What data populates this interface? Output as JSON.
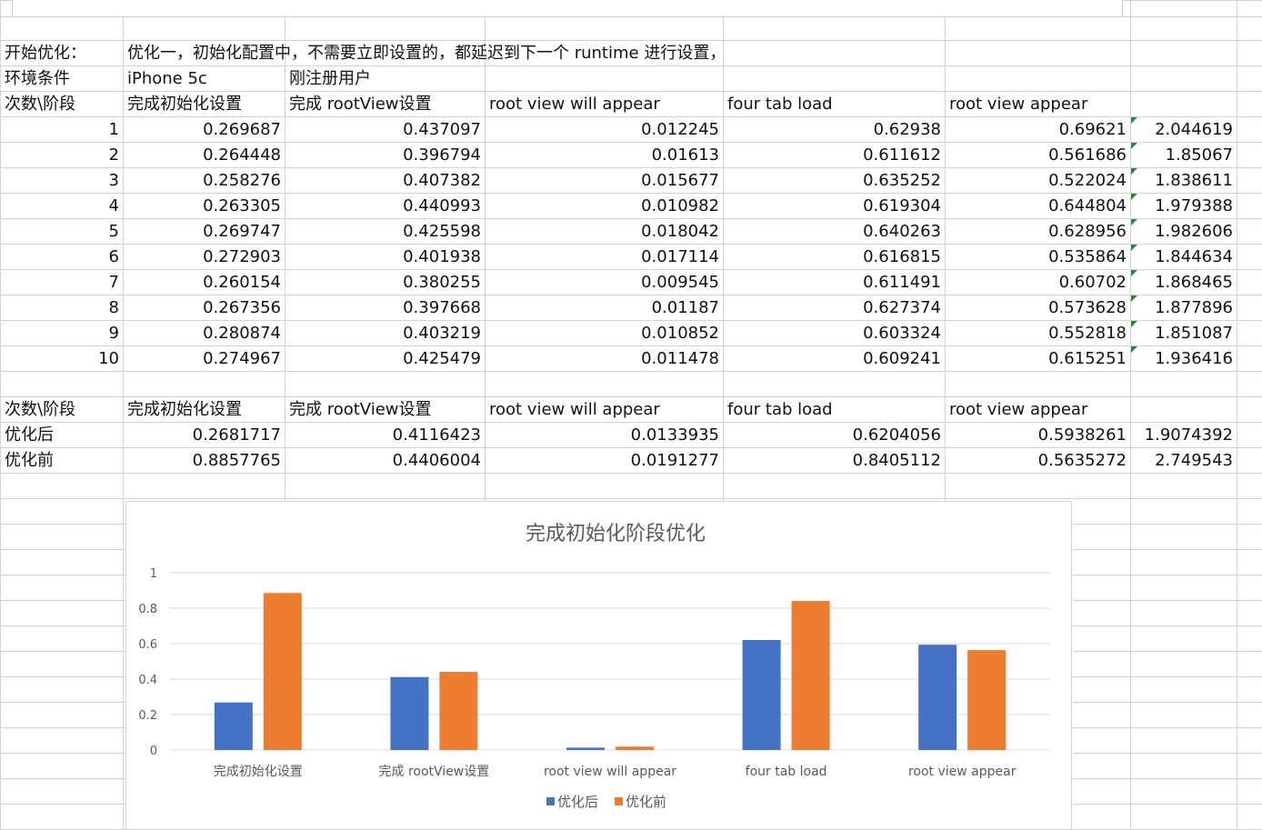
{
  "sheet": {
    "row_intro": {
      "label": "开始优化：",
      "note": "优化一，初始化配置中，不需要立即设置的，都延迟到下一个 runtime 进行设置，"
    },
    "row_env": {
      "label": "环境条件",
      "device": "iPhone 5c",
      "user": "刚注册用户"
    },
    "headers": [
      "次数\\阶段",
      "完成初始化设置",
      "完成 rootView设置",
      "root view will appear",
      "four tab load",
      "root view appear"
    ],
    "runs": [
      [
        "1",
        "0.269687",
        "0.437097",
        "0.012245",
        "0.62938",
        "0.69621",
        "2.044619"
      ],
      [
        "2",
        "0.264448",
        "0.396794",
        "0.01613",
        "0.611612",
        "0.561686",
        "1.85067"
      ],
      [
        "3",
        "0.258276",
        "0.407382",
        "0.015677",
        "0.635252",
        "0.522024",
        "1.838611"
      ],
      [
        "4",
        "0.263305",
        "0.440993",
        "0.010982",
        "0.619304",
        "0.644804",
        "1.979388"
      ],
      [
        "5",
        "0.269747",
        "0.425598",
        "0.018042",
        "0.640263",
        "0.628956",
        "1.982606"
      ],
      [
        "6",
        "0.272903",
        "0.401938",
        "0.017114",
        "0.616815",
        "0.535864",
        "1.844634"
      ],
      [
        "7",
        "0.260154",
        "0.380255",
        "0.009545",
        "0.611491",
        "0.60702",
        "1.868465"
      ],
      [
        "8",
        "0.267356",
        "0.397668",
        "0.01187",
        "0.627374",
        "0.573628",
        "1.877896"
      ],
      [
        "9",
        "0.280874",
        "0.403219",
        "0.010852",
        "0.603324",
        "0.552818",
        "1.851087"
      ],
      [
        "10",
        "0.274967",
        "0.425479",
        "0.011478",
        "0.609241",
        "0.615251",
        "1.936416"
      ]
    ],
    "summary_headers": [
      "次数\\阶段",
      "完成初始化设置",
      "完成 rootView设置",
      "root view will appear",
      "four tab load",
      "root view appear"
    ],
    "summary_rows": [
      [
        "优化后",
        "0.2681717",
        "0.4116423",
        "0.0133935",
        "0.6204056",
        "0.5938261",
        "1.9074392"
      ],
      [
        "优化前",
        "0.8857765",
        "0.4406004",
        "0.0191277",
        "0.8405112",
        "0.5635272",
        "2.749543"
      ]
    ]
  },
  "chart_data": {
    "type": "bar",
    "title": "完成初始化阶段优化",
    "categories": [
      "完成初始化设置",
      "完成 rootView设置",
      "root view will appear",
      "four tab load",
      "root view appear"
    ],
    "series": [
      {
        "name": "优化后",
        "values": [
          0.2681717,
          0.4116423,
          0.0133935,
          0.6204056,
          0.5938261
        ],
        "color": "#4472c4"
      },
      {
        "name": "优化前",
        "values": [
          0.8857765,
          0.4406004,
          0.0191277,
          0.8405112,
          0.5635272
        ],
        "color": "#ed7d31"
      }
    ],
    "ylim": [
      0,
      1
    ],
    "yticks": [
      "0",
      "0.2",
      "0.4",
      "0.6",
      "0.8",
      "1"
    ],
    "grid": true,
    "legend": "bottom"
  }
}
